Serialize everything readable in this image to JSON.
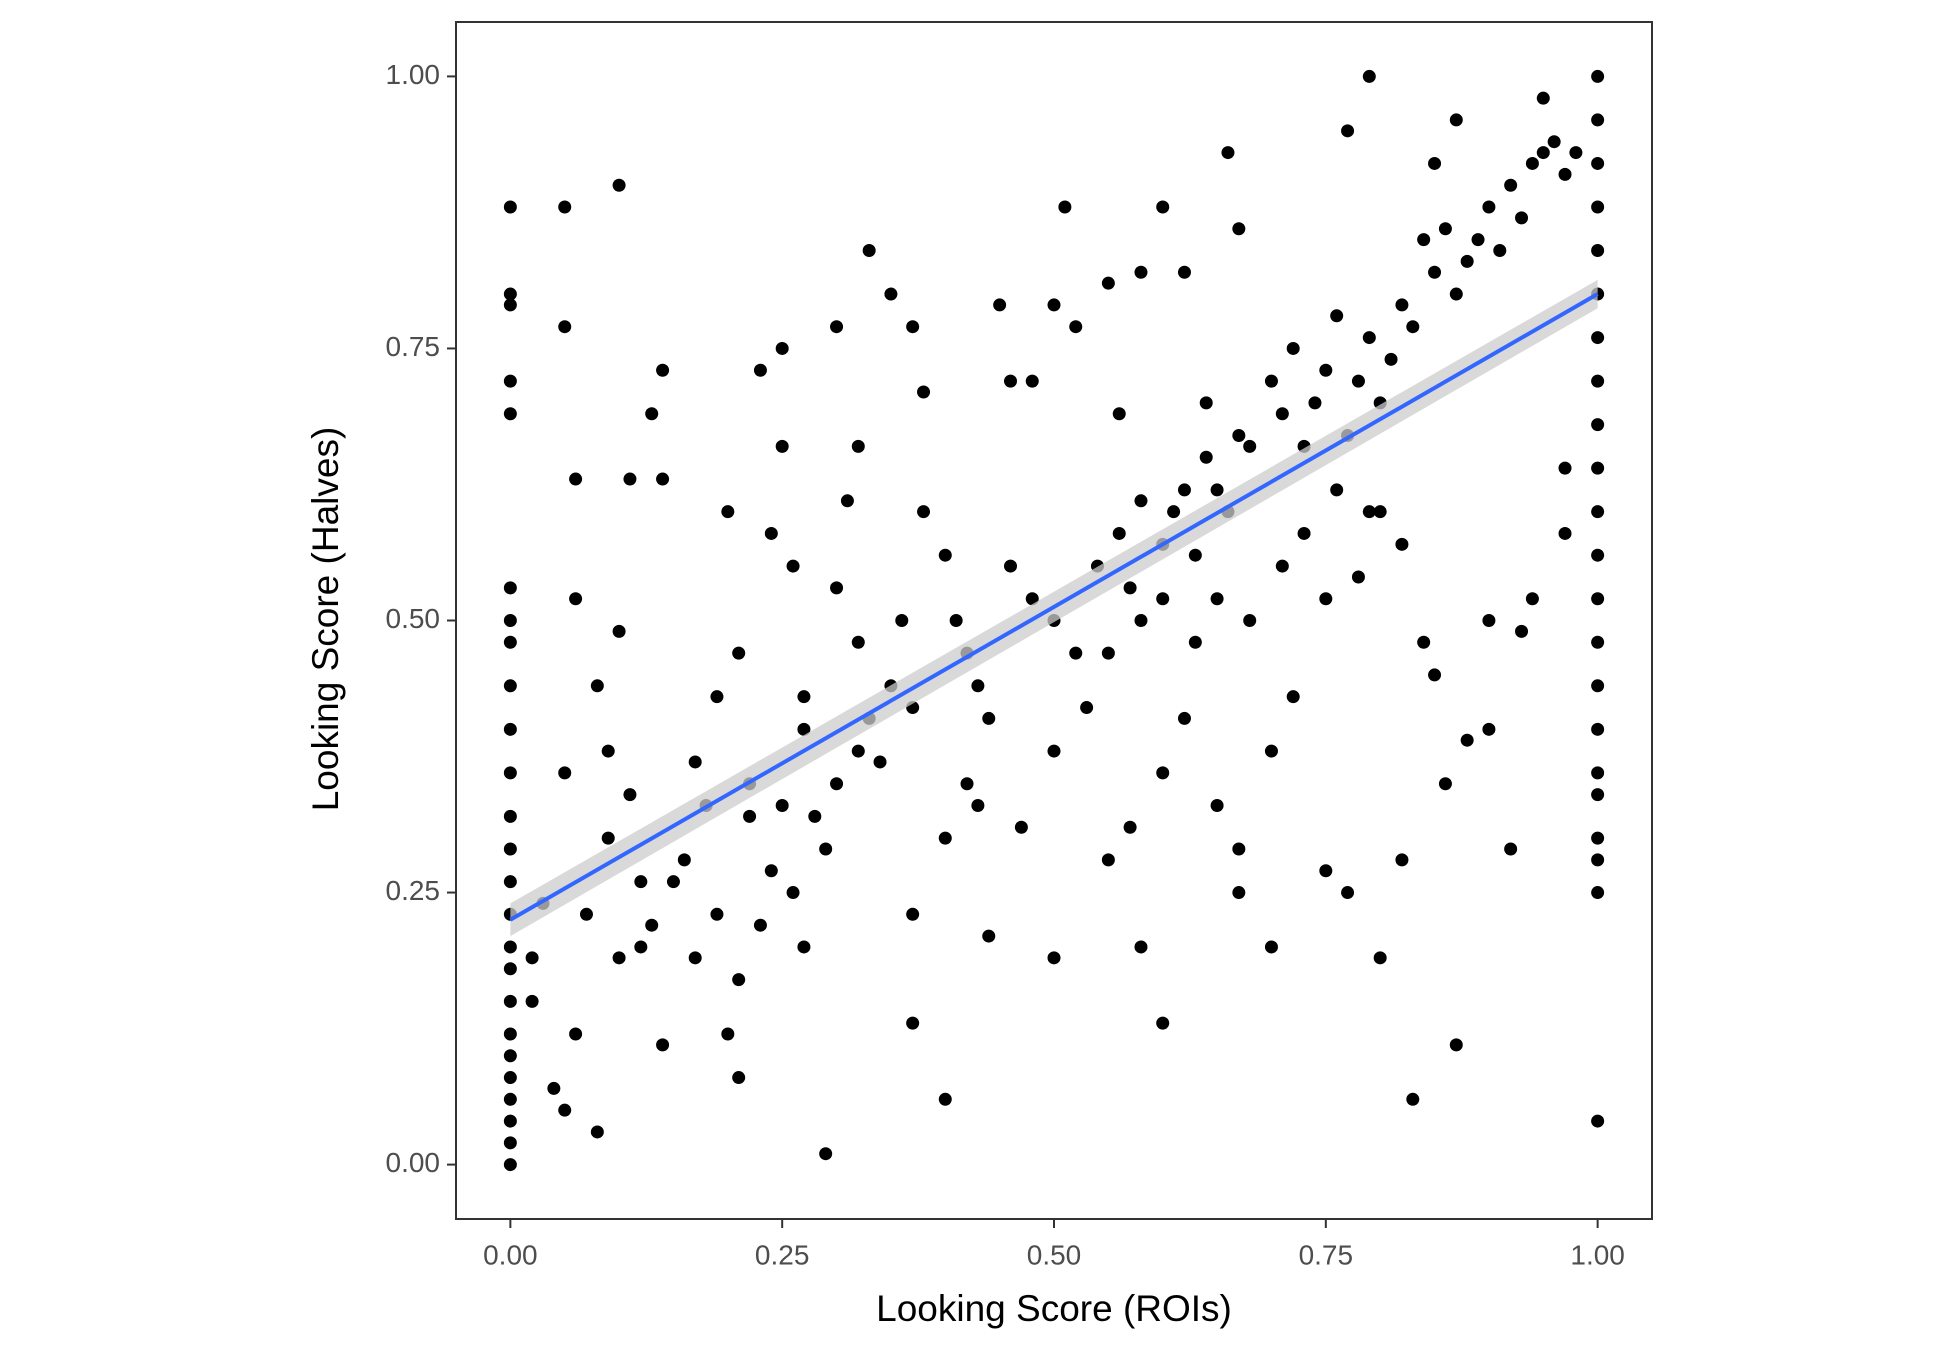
{
  "chart_data": {
    "type": "scatter",
    "x_label": "Looking Score (ROIs)",
    "y_label": "Looking Score (Halves)",
    "xlim": [
      -0.05,
      1.05
    ],
    "ylim": [
      -0.05,
      1.05
    ],
    "xticks": [
      {
        "value": 0,
        "label": "0.00"
      },
      {
        "value": 0.25,
        "label": "0.25"
      },
      {
        "value": 0.5,
        "label": "0.50"
      },
      {
        "value": 0.75,
        "label": "0.75"
      },
      {
        "value": 1,
        "label": "1.00"
      }
    ],
    "yticks": [
      {
        "value": 0,
        "label": "0.00"
      },
      {
        "value": 0.25,
        "label": "0.25"
      },
      {
        "value": 0.5,
        "label": "0.50"
      },
      {
        "value": 0.75,
        "label": "0.75"
      },
      {
        "value": 1,
        "label": "1.00"
      }
    ],
    "grid": false,
    "series": [
      {
        "color": "#000000",
        "x": [
          0,
          0,
          0,
          0,
          0,
          0,
          0,
          0,
          0,
          0,
          0,
          0,
          0,
          0,
          0,
          0,
          0,
          0,
          0,
          0,
          0,
          0,
          0,
          0,
          0,
          1,
          1,
          1,
          1,
          1,
          1,
          1,
          1,
          1,
          1,
          1,
          1,
          1,
          1,
          1,
          1,
          1,
          1,
          1,
          1,
          1,
          1,
          0.05,
          0.1,
          0.05,
          0.06,
          0.11,
          0.14,
          0.14,
          0.13,
          0.06,
          0.1,
          0.08,
          0.09,
          0.05,
          0.07,
          0.09,
          0.1,
          0.12,
          0.13,
          0.15,
          0.17,
          0.19,
          0.2,
          0.21,
          0.14,
          0.08,
          0.05,
          0.02,
          0.02,
          0.03,
          0.06,
          0.04,
          0.17,
          0.19,
          0.2,
          0.21,
          0.22,
          0.23,
          0.25,
          0.25,
          0.24,
          0.26,
          0.27,
          0.28,
          0.29,
          0.3,
          0.31,
          0.32,
          0.33,
          0.35,
          0.37,
          0.38,
          0.3,
          0.32,
          0.33,
          0.34,
          0.35,
          0.36,
          0.37,
          0.38,
          0.4,
          0.41,
          0.42,
          0.43,
          0.44,
          0.45,
          0.46,
          0.48,
          0.5,
          0.51,
          0.52,
          0.55,
          0.56,
          0.58,
          0.6,
          0.62,
          0.64,
          0.66,
          0.67,
          0.46,
          0.48,
          0.5,
          0.52,
          0.54,
          0.56,
          0.57,
          0.58,
          0.6,
          0.61,
          0.62,
          0.63,
          0.64,
          0.65,
          0.66,
          0.67,
          0.68,
          0.7,
          0.71,
          0.72,
          0.73,
          0.74,
          0.75,
          0.76,
          0.77,
          0.78,
          0.79,
          0.8,
          0.81,
          0.82,
          0.83,
          0.84,
          0.85,
          0.86,
          0.87,
          0.88,
          0.89,
          0.9,
          0.91,
          0.92,
          0.93,
          0.94,
          0.95,
          0.96,
          0.97,
          0.98,
          0.95,
          0.79,
          0.77,
          0.87,
          0.85,
          0.8,
          0.82,
          0.84,
          0.85,
          0.86,
          0.88,
          0.9,
          0.9,
          0.92,
          0.93,
          0.94,
          0.97,
          0.97,
          0.8,
          0.82,
          0.83,
          0.87,
          0.77,
          0.75,
          0.7,
          0.67,
          0.67,
          0.65,
          0.6,
          0.58,
          0.5,
          0.44,
          0.4,
          0.37,
          0.37,
          0.29,
          0.27,
          0.26,
          0.23,
          0.21,
          0.55,
          0.57,
          0.6,
          0.62,
          0.7,
          0.72,
          0.75,
          0.78,
          0.4,
          0.42,
          0.43,
          0.47,
          0.5,
          0.53,
          0.55,
          0.58,
          0.6,
          0.63,
          0.65,
          0.68,
          0.71,
          0.73,
          0.76,
          0.79,
          0.3,
          0.32,
          0.27,
          0.25,
          0.22,
          0.24,
          0.18,
          0.16,
          0.12,
          0.11
        ],
        "values": [
          0,
          0.02,
          0.04,
          0.06,
          0.08,
          0.1,
          0.12,
          0.15,
          0.18,
          0.2,
          0.23,
          0.26,
          0.29,
          0.32,
          0.36,
          0.4,
          0.44,
          0.48,
          0.5,
          0.53,
          0.69,
          0.72,
          0.79,
          0.8,
          0.88,
          0.04,
          0.25,
          0.28,
          0.3,
          0.34,
          0.36,
          0.4,
          0.44,
          0.48,
          0.52,
          0.56,
          0.6,
          0.64,
          0.68,
          0.72,
          0.76,
          0.8,
          0.84,
          0.88,
          0.92,
          0.96,
          1,
          0.88,
          0.9,
          0.77,
          0.63,
          0.63,
          0.73,
          0.63,
          0.69,
          0.52,
          0.49,
          0.44,
          0.38,
          0.36,
          0.23,
          0.3,
          0.19,
          0.2,
          0.22,
          0.26,
          0.19,
          0.23,
          0.12,
          0.08,
          0.11,
          0.03,
          0.05,
          0.15,
          0.19,
          0.24,
          0.12,
          0.07,
          0.37,
          0.43,
          0.6,
          0.47,
          0.35,
          0.73,
          0.75,
          0.66,
          0.58,
          0.55,
          0.4,
          0.32,
          0.29,
          0.77,
          0.61,
          0.66,
          0.84,
          0.8,
          0.77,
          0.71,
          0.53,
          0.48,
          0.41,
          0.37,
          0.44,
          0.5,
          0.42,
          0.6,
          0.56,
          0.5,
          0.47,
          0.44,
          0.41,
          0.79,
          0.72,
          0.72,
          0.79,
          0.88,
          0.77,
          0.81,
          0.69,
          0.82,
          0.88,
          0.82,
          0.7,
          0.93,
          0.86,
          0.55,
          0.52,
          0.5,
          0.47,
          0.55,
          0.58,
          0.53,
          0.61,
          0.57,
          0.6,
          0.62,
          0.56,
          0.65,
          0.62,
          0.6,
          0.67,
          0.66,
          0.72,
          0.69,
          0.75,
          0.66,
          0.7,
          0.73,
          0.78,
          0.67,
          0.72,
          0.76,
          0.7,
          0.74,
          0.79,
          0.77,
          0.85,
          0.82,
          0.86,
          0.8,
          0.83,
          0.85,
          0.88,
          0.84,
          0.9,
          0.87,
          0.92,
          0.93,
          0.94,
          0.91,
          0.93,
          0.98,
          1,
          0.95,
          0.96,
          0.92,
          0.6,
          0.57,
          0.48,
          0.45,
          0.35,
          0.39,
          0.4,
          0.5,
          0.29,
          0.49,
          0.52,
          0.58,
          0.64,
          0.19,
          0.28,
          0.06,
          0.11,
          0.25,
          0.27,
          0.2,
          0.25,
          0.29,
          0.33,
          0.13,
          0.2,
          0.19,
          0.21,
          0.06,
          0.13,
          0.23,
          0.01,
          0.2,
          0.25,
          0.22,
          0.17,
          0.28,
          0.31,
          0.36,
          0.41,
          0.38,
          0.43,
          0.52,
          0.54,
          0.3,
          0.35,
          0.33,
          0.31,
          0.38,
          0.42,
          0.47,
          0.5,
          0.52,
          0.48,
          0.52,
          0.5,
          0.55,
          0.58,
          0.62,
          0.6,
          0.35,
          0.38,
          0.43,
          0.33,
          0.32,
          0.27,
          0.33,
          0.28,
          0.26,
          0.34
        ]
      }
    ],
    "fit": {
      "color": "#3366FF",
      "band_color": "#cccccc",
      "x": [
        0,
        1
      ],
      "values": [
        0.225,
        0.8
      ],
      "lower": [
        0.21,
        0.787
      ],
      "upper": [
        0.24,
        0.813
      ]
    }
  }
}
